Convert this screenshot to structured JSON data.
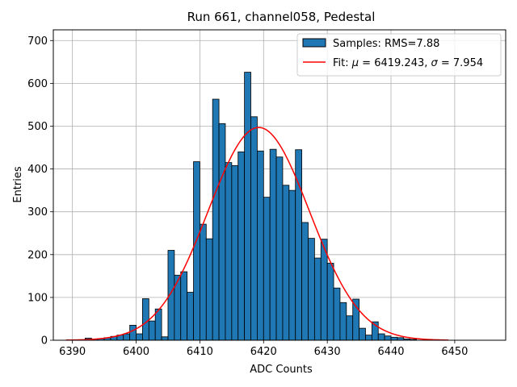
{
  "chart_data": {
    "type": "bar",
    "title": "Run 661, channel058, Pedestal",
    "xlabel": "ADC Counts",
    "ylabel": "Entries",
    "xlim": [
      6387,
      6458
    ],
    "ylim": [
      0,
      725
    ],
    "xticks": [
      6390,
      6400,
      6410,
      6420,
      6430,
      6440,
      6450
    ],
    "yticks": [
      0,
      100,
      200,
      300,
      400,
      500,
      600,
      700
    ],
    "grid": true,
    "bin_width": 1,
    "bins_start": 6392,
    "histogram_values": [
      5,
      3,
      4,
      6,
      9,
      12,
      15,
      35,
      15,
      97,
      45,
      73,
      8,
      210,
      152,
      160,
      112,
      417,
      271,
      237,
      563,
      506,
      415,
      408,
      440,
      626,
      522,
      442,
      334,
      446,
      428,
      362,
      350,
      445,
      275,
      238,
      192,
      236,
      180,
      122,
      88,
      57,
      96,
      28,
      12,
      43,
      15,
      10,
      7,
      6,
      3,
      2
    ],
    "fit": {
      "mu": 6419.243,
      "sigma": 7.954,
      "amplitude": 497,
      "x_range": [
        6389,
        6449
      ]
    },
    "legend": {
      "location": "upper right",
      "hist_label": "Samples: RMS=7.88",
      "fit_prefix": "Fit: ",
      "mu_symbol": "μ",
      "mu_text": " = 6419.243, ",
      "sigma_symbol": "σ",
      "sigma_text": " = 7.954"
    },
    "colors": {
      "bar": "#1f77b4",
      "edge": "#000000",
      "fit": "#ff0000",
      "grid": "#b0b0b0"
    }
  }
}
